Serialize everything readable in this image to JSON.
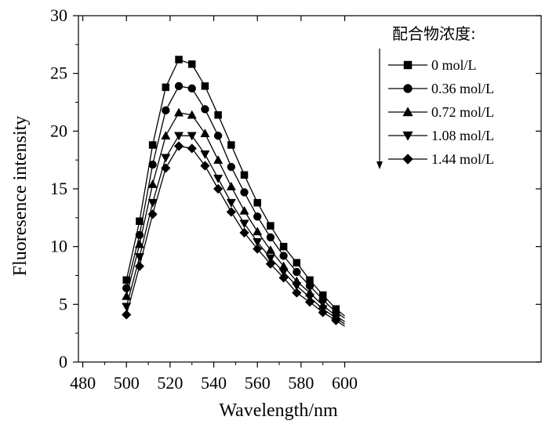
{
  "chart_data": {
    "type": "line",
    "xlabel": "Wavelength/nm",
    "ylabel": "Fluoresence intensity",
    "xlim": [
      478,
      690
    ],
    "ylim": [
      0,
      30
    ],
    "xticks": [
      480,
      500,
      520,
      540,
      560,
      580,
      600
    ],
    "yticks": [
      0,
      5,
      10,
      15,
      20,
      25,
      30
    ],
    "grid": false,
    "legend_title": "配合物浓度:",
    "legend_position": "top-right",
    "x": [
      500,
      506,
      512,
      518,
      524,
      530,
      536,
      542,
      548,
      554,
      560,
      566,
      572,
      578,
      584,
      590,
      596
    ],
    "series": [
      {
        "name": "0 mol/L",
        "marker": "square",
        "values": [
          7.1,
          12.2,
          18.8,
          23.8,
          26.2,
          25.8,
          23.9,
          21.4,
          18.8,
          16.2,
          13.8,
          11.8,
          10.0,
          8.6,
          7.1,
          5.8,
          4.6
        ]
      },
      {
        "name": "0.36 mol/L",
        "marker": "circle",
        "values": [
          6.4,
          11.0,
          17.1,
          21.8,
          23.9,
          23.7,
          21.9,
          19.6,
          16.9,
          14.7,
          12.6,
          10.8,
          9.2,
          7.8,
          6.6,
          5.4,
          4.3
        ]
      },
      {
        "name": "0.72 mol/L",
        "marker": "triangle-up",
        "values": [
          5.7,
          10.2,
          15.4,
          19.6,
          21.6,
          21.4,
          19.8,
          17.5,
          15.2,
          13.1,
          11.3,
          9.7,
          8.3,
          7.0,
          6.0,
          4.9,
          4.0
        ]
      },
      {
        "name": "1.08 mol/L",
        "marker": "triangle-down",
        "values": [
          4.8,
          9.1,
          13.8,
          17.7,
          19.6,
          19.6,
          18.0,
          15.9,
          13.8,
          12.0,
          10.4,
          9.0,
          7.8,
          6.6,
          5.6,
          4.6,
          3.8
        ]
      },
      {
        "name": "1.44 mol/L",
        "marker": "diamond",
        "values": [
          4.1,
          8.3,
          12.8,
          16.8,
          18.7,
          18.5,
          17.0,
          15.0,
          13.0,
          11.2,
          9.8,
          8.5,
          7.3,
          6.0,
          5.2,
          4.3,
          3.6
        ]
      }
    ],
    "line_end": {
      "x": 600,
      "values": [
        4.0,
        3.8,
        3.5,
        3.3,
        3.1
      ]
    },
    "colors": {
      "line": "#000000",
      "marker": "#000000",
      "axis": "#000000"
    }
  }
}
